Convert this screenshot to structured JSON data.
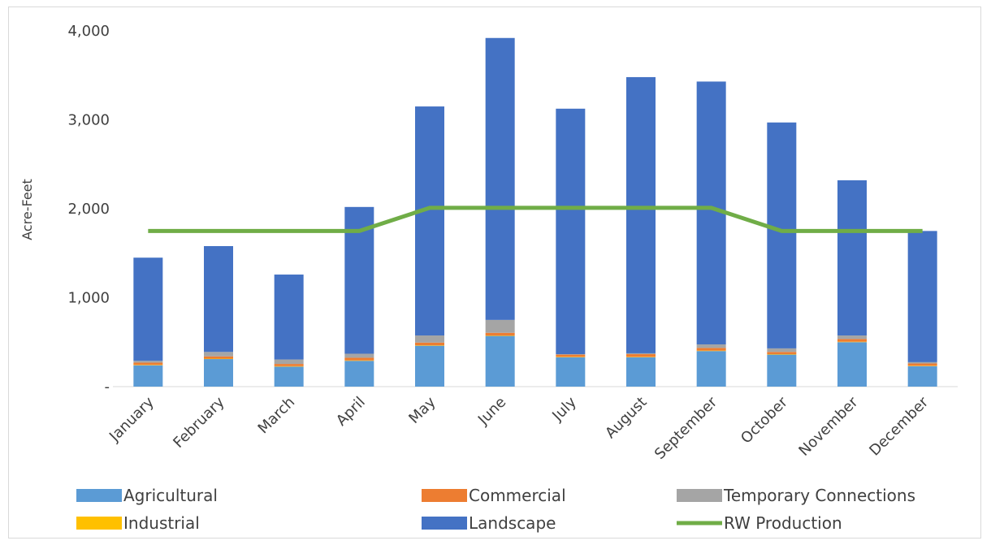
{
  "chart_data": {
    "type": "bar",
    "stacked": true,
    "categories": [
      "January",
      "February",
      "March",
      "April",
      "May",
      "June",
      "July",
      "August",
      "September",
      "October",
      "November",
      "December"
    ],
    "ylabel": "Acre-Feet",
    "ylim": [
      0,
      4000
    ],
    "yticks": [
      0,
      1000,
      2000,
      3000,
      4000
    ],
    "ytick_labels": [
      "-",
      "1,000",
      "2,000",
      "3,000",
      "4,000"
    ],
    "grid": false,
    "legend_position": "bottom",
    "series": [
      {
        "name": "Agricultural",
        "type": "bar",
        "color": "#5b9bd5",
        "values": [
          240,
          310,
          225,
          290,
          460,
          570,
          330,
          330,
          400,
          360,
          500,
          230
        ]
      },
      {
        "name": "Industrial",
        "type": "bar",
        "color": "#ffc000",
        "values": [
          5,
          5,
          5,
          5,
          5,
          5,
          5,
          5,
          5,
          5,
          5,
          5
        ]
      },
      {
        "name": "Commercial",
        "type": "bar",
        "color": "#ed7d31",
        "values": [
          25,
          25,
          25,
          30,
          30,
          30,
          25,
          30,
          30,
          25,
          30,
          25
        ]
      },
      {
        "name": "Temporary Connections",
        "type": "bar",
        "color": "#a5a5a5",
        "values": [
          20,
          50,
          50,
          45,
          80,
          145,
          5,
          10,
          40,
          40,
          40,
          15
        ]
      },
      {
        "name": "Landscape",
        "type": "bar",
        "color": "#4472c4",
        "values": [
          1160,
          1190,
          955,
          1650,
          2575,
          3170,
          2760,
          3105,
          2955,
          2540,
          1745,
          1475
        ]
      },
      {
        "name": "RW Production",
        "type": "line",
        "color": "#70ad47",
        "values": [
          1750,
          1750,
          1750,
          1750,
          2010,
          2010,
          2010,
          2010,
          2010,
          1750,
          1750,
          1750
        ]
      }
    ],
    "legend": [
      {
        "series": "Agricultural"
      },
      {
        "series": "Commercial"
      },
      {
        "series": "Temporary Connections"
      },
      {
        "series": "Industrial"
      },
      {
        "series": "Landscape"
      },
      {
        "series": "RW Production"
      }
    ]
  }
}
